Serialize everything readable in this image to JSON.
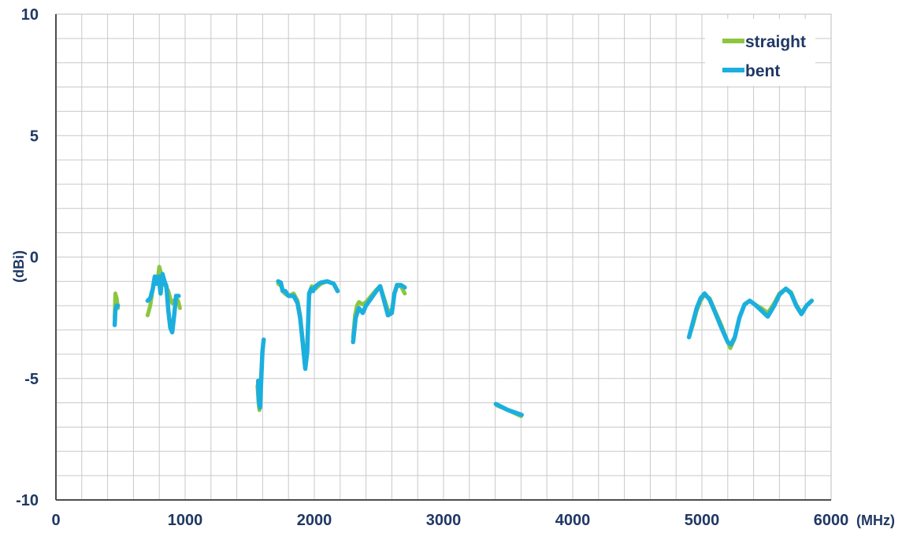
{
  "chart_data": {
    "type": "line",
    "xlabel": "(MHz)",
    "ylabel": "(dBi)",
    "xlim": [
      0,
      6000
    ],
    "ylim": [
      -10,
      10
    ],
    "x_ticks": [
      0,
      1000,
      2000,
      3000,
      4000,
      5000,
      6000
    ],
    "y_ticks": [
      10,
      5,
      0,
      -5,
      -10
    ],
    "x_tick_labels": [
      "0",
      "1000",
      "2000",
      "3000",
      "4000",
      "5000",
      "6000"
    ],
    "y_tick_labels": [
      "10",
      "5",
      "0",
      "-5",
      "-10"
    ],
    "x_minor_step": 200,
    "y_minor_step": 1,
    "grid": true,
    "legend_position": "top-right",
    "series": [
      {
        "name": "straight",
        "color": "#8cc63f",
        "segments": [
          [
            [
              455,
              -2.5
            ],
            [
              460,
              -1.5
            ],
            [
              470,
              -1.7
            ],
            [
              480,
              -2.1
            ]
          ],
          [
            [
              710,
              -2.4
            ],
            [
              730,
              -2.0
            ],
            [
              750,
              -1.3
            ],
            [
              770,
              -0.9
            ],
            [
              790,
              -0.8
            ],
            [
              800,
              -0.4
            ],
            [
              815,
              -0.7
            ],
            [
              830,
              -1.0
            ],
            [
              850,
              -1.2
            ],
            [
              870,
              -1.4
            ],
            [
              885,
              -1.7
            ],
            [
              900,
              -1.9
            ],
            [
              915,
              -1.8
            ],
            [
              930,
              -1.7
            ],
            [
              945,
              -1.8
            ],
            [
              960,
              -2.1
            ]
          ],
          [
            [
              1560,
              -5.3
            ],
            [
              1570,
              -6.1
            ],
            [
              1575,
              -6.3
            ],
            [
              1585,
              -5.2
            ],
            [
              1595,
              -4.2
            ],
            [
              1605,
              -3.5
            ]
          ],
          [
            [
              1720,
              -1.1
            ],
            [
              1745,
              -1.2
            ],
            [
              1770,
              -1.5
            ],
            [
              1800,
              -1.6
            ],
            [
              1840,
              -1.5
            ],
            [
              1870,
              -1.8
            ],
            [
              1890,
              -2.4
            ],
            [
              1910,
              -3.4
            ],
            [
              1930,
              -4.5
            ],
            [
              1945,
              -3.5
            ],
            [
              1960,
              -1.6
            ],
            [
              1980,
              -1.2
            ],
            [
              2010,
              -1.3
            ],
            [
              2050,
              -1.1
            ],
            [
              2100,
              -1.0
            ],
            [
              2150,
              -1.1
            ],
            [
              2180,
              -1.4
            ]
          ],
          [
            [
              2300,
              -3.3
            ],
            [
              2315,
              -2.4
            ],
            [
              2330,
              -2.0
            ],
            [
              2345,
              -1.85
            ],
            [
              2375,
              -1.95
            ],
            [
              2400,
              -1.85
            ],
            [
              2440,
              -1.6
            ],
            [
              2480,
              -1.35
            ],
            [
              2510,
              -1.2
            ],
            [
              2540,
              -1.7
            ],
            [
              2570,
              -2.2
            ],
            [
              2600,
              -2.2
            ],
            [
              2620,
              -1.5
            ],
            [
              2640,
              -1.2
            ],
            [
              2670,
              -1.2
            ],
            [
              2700,
              -1.5
            ]
          ],
          [
            [
              3410,
              -6.1
            ],
            [
              3500,
              -6.3
            ],
            [
              3600,
              -6.55
            ]
          ],
          [
            [
              4900,
              -3.3
            ],
            [
              4930,
              -2.8
            ],
            [
              4960,
              -2.2
            ],
            [
              4990,
              -1.8
            ],
            [
              5020,
              -1.55
            ],
            [
              5060,
              -1.7
            ],
            [
              5100,
              -2.2
            ],
            [
              5150,
              -2.8
            ],
            [
              5200,
              -3.5
            ],
            [
              5220,
              -3.75
            ],
            [
              5250,
              -3.4
            ],
            [
              5290,
              -2.5
            ],
            [
              5330,
              -1.95
            ],
            [
              5370,
              -1.8
            ],
            [
              5410,
              -1.95
            ],
            [
              5460,
              -2.1
            ],
            [
              5510,
              -2.3
            ],
            [
              5560,
              -1.9
            ],
            [
              5600,
              -1.5
            ],
            [
              5650,
              -1.3
            ],
            [
              5690,
              -1.45
            ],
            [
              5730,
              -1.95
            ],
            [
              5770,
              -2.3
            ],
            [
              5810,
              -2.0
            ],
            [
              5850,
              -1.8
            ]
          ]
        ]
      },
      {
        "name": "bent",
        "color": "#1bafdf",
        "segments": [
          [
            [
              455,
              -2.8
            ],
            [
              460,
              -2.2
            ],
            [
              470,
              -2.0
            ],
            [
              480,
              -2.0
            ]
          ],
          [
            [
              710,
              -1.8
            ],
            [
              730,
              -1.7
            ],
            [
              750,
              -1.3
            ],
            [
              765,
              -0.8
            ],
            [
              780,
              -1.1
            ],
            [
              795,
              -0.8
            ],
            [
              810,
              -1.5
            ],
            [
              825,
              -0.7
            ],
            [
              840,
              -1.0
            ],
            [
              855,
              -1.2
            ],
            [
              870,
              -2.2
            ],
            [
              885,
              -2.9
            ],
            [
              900,
              -3.1
            ],
            [
              915,
              -2.4
            ],
            [
              930,
              -1.6
            ],
            [
              950,
              -1.6
            ]
          ],
          [
            [
              1565,
              -5.1
            ],
            [
              1570,
              -5.9
            ],
            [
              1580,
              -6.2
            ],
            [
              1590,
              -4.9
            ],
            [
              1598,
              -3.9
            ],
            [
              1608,
              -3.4
            ]
          ],
          [
            [
              1720,
              -1.0
            ],
            [
              1740,
              -1.05
            ],
            [
              1755,
              -1.4
            ],
            [
              1775,
              -1.4
            ],
            [
              1800,
              -1.6
            ],
            [
              1840,
              -1.6
            ],
            [
              1870,
              -1.9
            ],
            [
              1890,
              -2.5
            ],
            [
              1910,
              -3.5
            ],
            [
              1930,
              -4.6
            ],
            [
              1945,
              -3.9
            ],
            [
              1960,
              -1.5
            ],
            [
              1975,
              -1.3
            ],
            [
              1990,
              -1.4
            ],
            [
              2010,
              -1.2
            ],
            [
              2050,
              -1.05
            ],
            [
              2100,
              -1.0
            ],
            [
              2150,
              -1.1
            ],
            [
              2180,
              -1.4
            ]
          ],
          [
            [
              2300,
              -3.5
            ],
            [
              2320,
              -2.5
            ],
            [
              2345,
              -2.1
            ],
            [
              2375,
              -2.3
            ],
            [
              2400,
              -2.0
            ],
            [
              2440,
              -1.7
            ],
            [
              2480,
              -1.4
            ],
            [
              2510,
              -1.2
            ],
            [
              2540,
              -1.8
            ],
            [
              2570,
              -2.4
            ],
            [
              2600,
              -2.3
            ],
            [
              2620,
              -1.5
            ],
            [
              2640,
              -1.15
            ],
            [
              2670,
              -1.15
            ],
            [
              2700,
              -1.25
            ]
          ],
          [
            [
              3405,
              -6.05
            ],
            [
              3500,
              -6.3
            ],
            [
              3605,
              -6.5
            ]
          ],
          [
            [
              4900,
              -3.3
            ],
            [
              4930,
              -2.7
            ],
            [
              4960,
              -2.1
            ],
            [
              4990,
              -1.7
            ],
            [
              5020,
              -1.5
            ],
            [
              5060,
              -1.75
            ],
            [
              5100,
              -2.25
            ],
            [
              5150,
              -2.9
            ],
            [
              5200,
              -3.5
            ],
            [
              5225,
              -3.6
            ],
            [
              5255,
              -3.3
            ],
            [
              5290,
              -2.5
            ],
            [
              5330,
              -1.95
            ],
            [
              5370,
              -1.8
            ],
            [
              5410,
              -1.95
            ],
            [
              5460,
              -2.2
            ],
            [
              5510,
              -2.45
            ],
            [
              5560,
              -2.0
            ],
            [
              5600,
              -1.55
            ],
            [
              5650,
              -1.3
            ],
            [
              5690,
              -1.5
            ],
            [
              5730,
              -2.0
            ],
            [
              5770,
              -2.35
            ],
            [
              5810,
              -2.0
            ],
            [
              5850,
              -1.8
            ]
          ]
        ]
      }
    ]
  }
}
